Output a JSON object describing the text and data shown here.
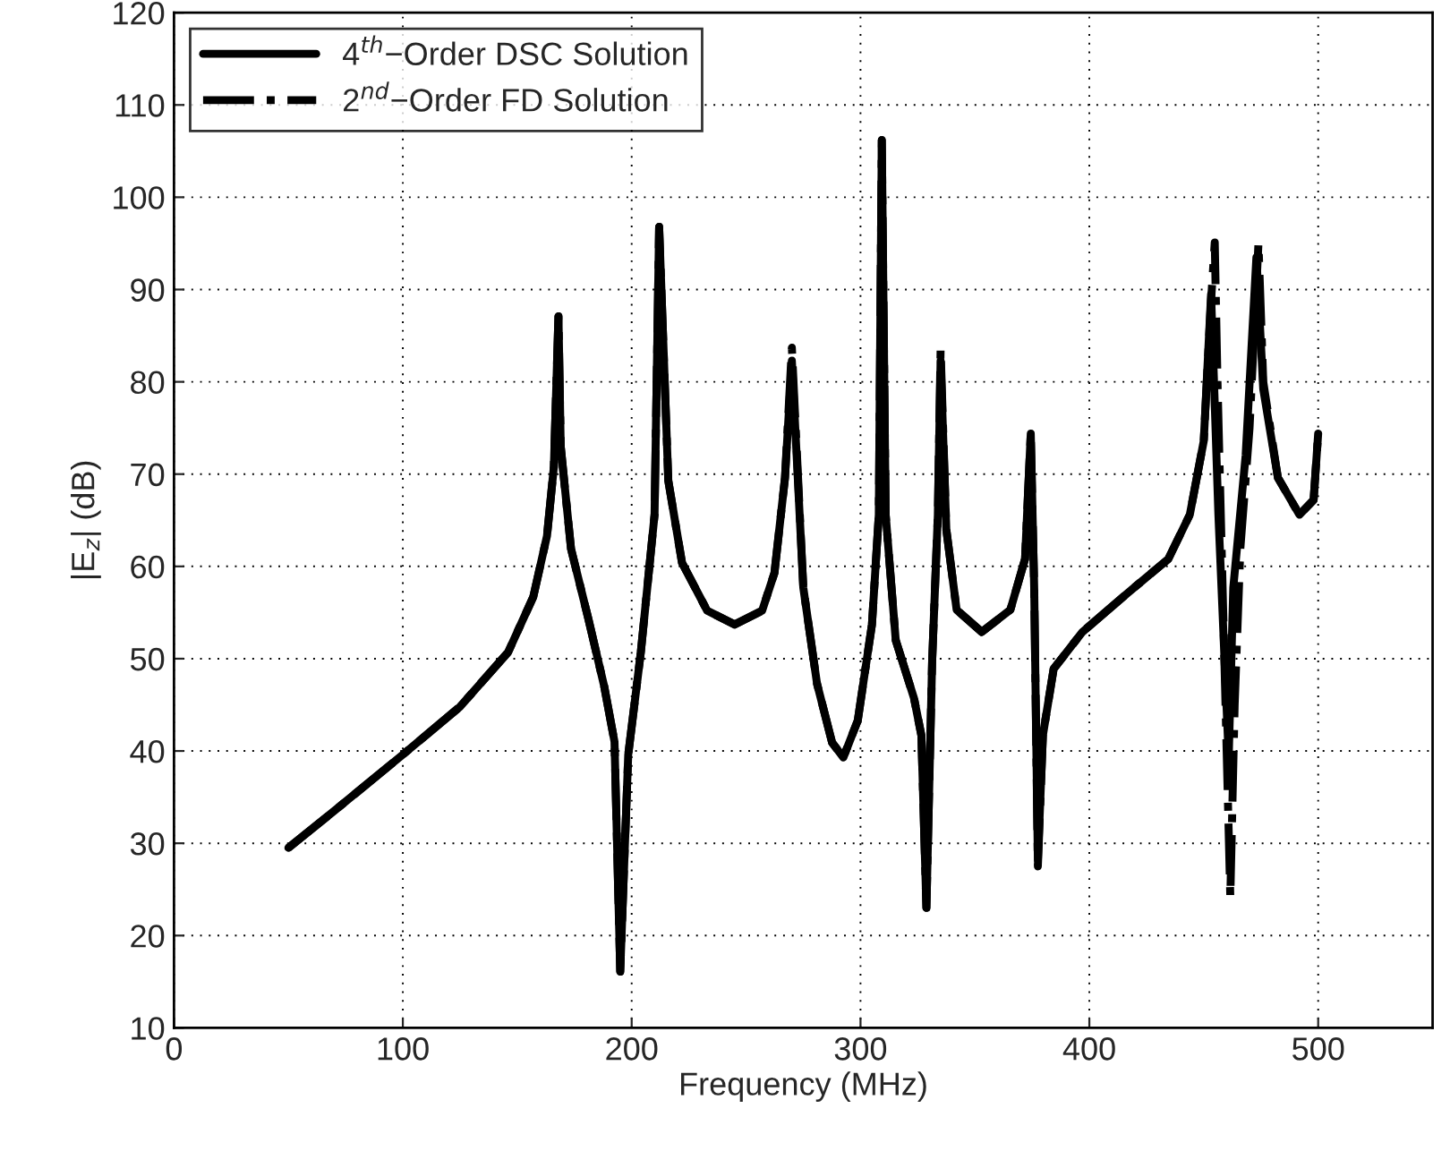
{
  "chart_data": {
    "type": "line",
    "xlabel": "Frequency (MHz)",
    "ylabel": "|E$_{z}$| (dB)",
    "xlim": [
      0,
      550
    ],
    "xticks": [
      0,
      100,
      200,
      300,
      400,
      500
    ],
    "ylim": [
      10,
      120
    ],
    "yticks": [
      10,
      20,
      30,
      40,
      50,
      60,
      70,
      80,
      90,
      100,
      110,
      120
    ],
    "grid": true,
    "legend": "top left",
    "marker": "none",
    "series": [
      {
        "name": "2$^{nd}$−Order FD Solution",
        "color": "#000000",
        "line_style": "dashdot",
        "x": [
          50,
          70,
          100,
          125,
          146,
          157,
          163,
          166,
          168,
          169,
          173.5,
          181,
          188,
          192.5,
          195,
          198.5,
          204,
          210,
          212,
          216,
          222,
          233,
          245,
          257,
          262.4,
          267,
          270,
          275,
          281,
          287.6,
          292.5,
          298.8,
          305,
          308,
          309.3,
          311,
          315.4,
          323.4,
          326.6,
          328.8,
          331.3,
          333.8,
          335,
          337.5,
          342,
          353,
          365.5,
          371.9,
          374.4,
          375.9,
          377.5,
          379.7,
          384.4,
          397,
          415.7,
          434.5,
          443.9,
          450,
          453,
          454.8,
          456,
          458.5,
          461.6,
          463.5,
          466,
          470,
          473.9,
          476,
          482.4,
          491.8,
          498,
          500
        ],
        "values": [
          29.5,
          33.5,
          39.6,
          44.8,
          50.7,
          56.7,
          63.3,
          70.8,
          87.1,
          73,
          61.9,
          54.4,
          47,
          41,
          16.1,
          39.6,
          50.7,
          65.6,
          96.8,
          69.3,
          60.4,
          55.2,
          53.7,
          55.2,
          59.3,
          69.6,
          83.7,
          57.7,
          47.3,
          40.9,
          39.3,
          43.3,
          53.7,
          65.6,
          106.2,
          65.6,
          52,
          45.7,
          41.7,
          23,
          49.7,
          65.6,
          83.5,
          64,
          55.3,
          52.9,
          55.3,
          60.8,
          74.4,
          57.7,
          27.5,
          41.7,
          48.9,
          52.9,
          56.9,
          60.8,
          65.6,
          73.6,
          88,
          95.1,
          80,
          55,
          24.2,
          45,
          62,
          75,
          95,
          80,
          69.6,
          65.6,
          67.2,
          74.4
        ]
      },
      {
        "name": "4$^{th}$−Order DSC Solution",
        "color": "#000000",
        "line_style": "solid",
        "x": [
          50,
          70,
          100,
          125,
          146,
          157,
          163,
          166,
          168,
          169,
          173.5,
          181,
          188,
          192.5,
          195,
          198.5,
          204,
          210,
          212,
          216,
          222,
          233,
          245,
          257,
          262.4,
          267,
          270,
          275,
          281,
          287.6,
          292.5,
          298.8,
          305,
          308,
          309.3,
          311,
          315.4,
          323.4,
          326.6,
          328.8,
          331.3,
          333.8,
          335,
          337.5,
          342,
          353,
          365.5,
          371.9,
          374.4,
          375.9,
          377.5,
          379.7,
          384.4,
          397,
          415.7,
          434.5,
          443.9,
          450,
          453.2,
          456.4,
          460.9,
          462.9,
          468.3,
          473,
          476,
          482.4,
          491.8,
          498,
          500
        ],
        "values": [
          29.5,
          33.5,
          39.6,
          44.8,
          50.7,
          56.7,
          63.3,
          70.8,
          87.1,
          73,
          61.9,
          54.4,
          47,
          41,
          16.1,
          39.6,
          50.7,
          65.6,
          96.8,
          69.3,
          60.4,
          55.2,
          53.7,
          55.2,
          59.3,
          69.6,
          82.3,
          57.7,
          47.3,
          40.9,
          39.3,
          43.3,
          53.7,
          65.6,
          106.2,
          65.6,
          52,
          45.7,
          41.7,
          23,
          49.7,
          65.6,
          82.3,
          64,
          55.3,
          52.9,
          55.3,
          60.8,
          74.4,
          57.7,
          28.2,
          41.7,
          48.9,
          52.9,
          56.9,
          60.8,
          65.6,
          73.6,
          89.5,
          65.6,
          39.3,
          57.7,
          72,
          93.5,
          79.2,
          69.6,
          65.6,
          67.2,
          74.4
        ]
      }
    ]
  }
}
